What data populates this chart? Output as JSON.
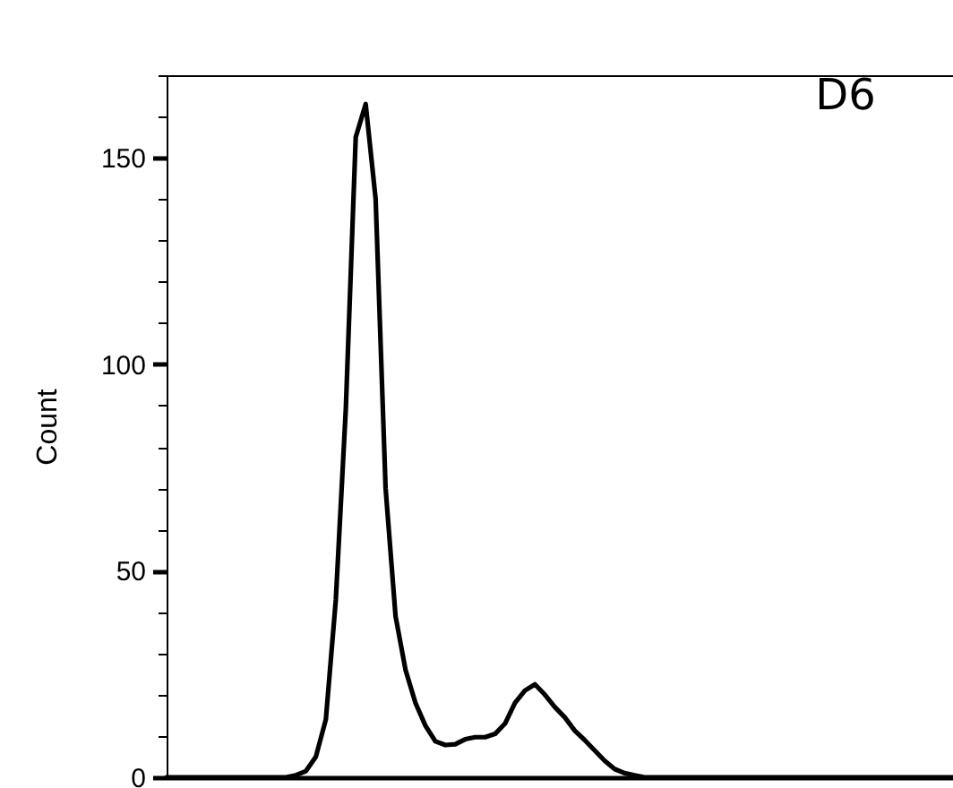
{
  "chart_data": {
    "type": "line",
    "ylabel": "Count",
    "annotations": [
      "D6"
    ],
    "categories": [
      null,
      null,
      null,
      null,
      null,
      null,
      null,
      null,
      null,
      null,
      null,
      null,
      null,
      null,
      null,
      null,
      null,
      null,
      null,
      null,
      null,
      null,
      null,
      null,
      null,
      null,
      null,
      null,
      null,
      null,
      null,
      null,
      null,
      null,
      null,
      null,
      null,
      null,
      null,
      null,
      null,
      null,
      null,
      null,
      null,
      null,
      null,
      null,
      null,
      null,
      null,
      null,
      null,
      null,
      null,
      null,
      null,
      null,
      null,
      null,
      null,
      null,
      null,
      null,
      null,
      null,
      null,
      null,
      null,
      null,
      null,
      null,
      null,
      null,
      null,
      null,
      null,
      null,
      null,
      null
    ],
    "series": [
      {
        "color": "#000000",
        "values": [
          0,
          0,
          0,
          0,
          0,
          0,
          0,
          0,
          0,
          0,
          0,
          0,
          0,
          0.5,
          1.5,
          5,
          14,
          43,
          89,
          155,
          163,
          140,
          70,
          39,
          26,
          18,
          12.5,
          8.7,
          7.8,
          8,
          9.2,
          9.7,
          9.7,
          10.5,
          13,
          18,
          21,
          22.5,
          20,
          17,
          14.5,
          11.3,
          9,
          6.5,
          4,
          2,
          1,
          0.5,
          0,
          0,
          0,
          0,
          0,
          0,
          0,
          0,
          0,
          0,
          0,
          0,
          0,
          0,
          0,
          0,
          0,
          0,
          0,
          0,
          0,
          0,
          0,
          0,
          0,
          0,
          0,
          0,
          0,
          0,
          0,
          0
        ]
      }
    ],
    "ylim": [
      0,
      170
    ],
    "yticks": [
      0,
      {
        "value": 10,
        "label": null
      },
      {
        "value": 20,
        "label": null
      },
      {
        "value": 30,
        "label": null
      },
      {
        "value": 40,
        "label": null
      },
      50,
      {
        "value": 60,
        "label": null
      },
      {
        "value": 70,
        "label": null
      },
      {
        "value": 80,
        "label": null
      },
      {
        "value": 90,
        "label": null
      },
      100,
      {
        "value": 110,
        "label": null
      },
      {
        "value": 120,
        "label": null
      },
      {
        "value": 130,
        "label": null
      },
      {
        "value": 140,
        "label": null
      },
      150,
      {
        "value": 160,
        "label": null
      },
      {
        "value": 170,
        "label": null
      }
    ],
    "tick_labels": "y",
    "marker": "none",
    "line_style": "solid",
    "grid": false,
    "legend": false
  }
}
